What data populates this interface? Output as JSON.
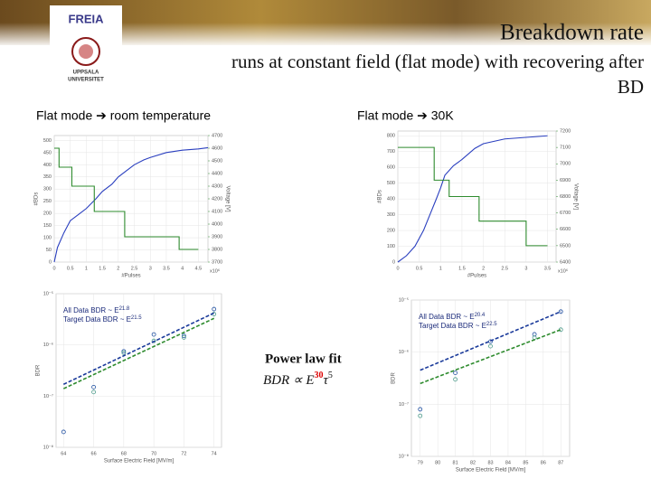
{
  "header": {
    "title": "Breakdown rate",
    "subtitle": [
      "runs at constant field (flat mode) with recovering after",
      "BD"
    ],
    "logo1": "FREIA",
    "logo2": [
      "UPPSALA",
      "UNIVERSITET"
    ],
    "left_heading": "Flat mode ➔ room temperature",
    "right_heading": "Flat mode ➔ 30K"
  },
  "formula": {
    "title": "Power law fit",
    "lhs": "BDR ∝ E",
    "exp1": "30",
    "tau": "τ",
    "exp2": "5"
  },
  "chart_data": [
    {
      "type": "line",
      "xlabel": "#Pulses",
      "ylabel": "#BDs",
      "y2label": "Voltage [V]",
      "x_multiplier": "x10⁶",
      "xlim": [
        0,
        4.8
      ],
      "xticks": [
        0,
        0.5,
        1,
        1.5,
        2,
        2.5,
        3,
        3.5,
        4,
        4.5
      ],
      "ylim": [
        0,
        520
      ],
      "yticks": [
        0,
        50,
        100,
        150,
        200,
        250,
        300,
        350,
        400,
        450,
        500
      ],
      "y2lim": [
        3700,
        4700
      ],
      "y2ticks": [
        3700,
        3800,
        3900,
        4000,
        4100,
        4200,
        4300,
        4400,
        4500,
        4600,
        4700
      ],
      "grid": true,
      "series": [
        {
          "color": "#2a3fbf",
          "style": "line",
          "x": [
            0,
            0.1,
            0.3,
            0.5,
            0.8,
            1,
            1.3,
            1.5,
            1.8,
            2,
            2.3,
            2.5,
            2.8,
            3,
            3.5,
            4,
            4.5,
            4.8
          ],
          "values": [
            0,
            60,
            120,
            170,
            200,
            220,
            260,
            290,
            320,
            350,
            380,
            400,
            420,
            430,
            450,
            460,
            465,
            470
          ]
        },
        {
          "color": "#2e8b2e",
          "style": "line",
          "axis": "y2",
          "x": [
            0,
            0.15,
            0.15,
            0.55,
            0.55,
            1.25,
            1.25,
            2.2,
            2.2,
            3.9,
            3.9,
            4.5
          ],
          "values": [
            4600,
            4600,
            4450,
            4450,
            4300,
            4300,
            4100,
            4100,
            3900,
            3900,
            3800,
            3800
          ]
        }
      ]
    },
    {
      "type": "line",
      "xlabel": "#Pulses",
      "ylabel": "#BDs",
      "y2label": "Voltage [V]",
      "x_multiplier": "x10⁶",
      "xlim": [
        0,
        3.7
      ],
      "xticks": [
        0,
        0.5,
        1,
        1.5,
        2,
        2.5,
        3,
        3.5
      ],
      "ylim": [
        0,
        830
      ],
      "yticks": [
        0,
        100,
        200,
        300,
        400,
        500,
        600,
        700,
        800
      ],
      "y2lim": [
        6400,
        7200
      ],
      "y2ticks": [
        6400,
        6500,
        6600,
        6700,
        6800,
        6900,
        7000,
        7100,
        7200
      ],
      "grid": true,
      "series": [
        {
          "color": "#2a3fbf",
          "style": "line",
          "x": [
            0,
            0.2,
            0.4,
            0.6,
            0.75,
            0.9,
            1,
            1.1,
            1.3,
            1.5,
            1.8,
            2,
            2.5,
            3,
            3.5
          ],
          "values": [
            0,
            40,
            100,
            200,
            300,
            400,
            470,
            550,
            610,
            650,
            720,
            750,
            780,
            790,
            800
          ]
        },
        {
          "color": "#2e8b2e",
          "style": "line",
          "axis": "y2",
          "x": [
            0,
            0.85,
            0.85,
            1.2,
            1.2,
            1.9,
            1.9,
            3,
            3,
            3.5
          ],
          "values": [
            7100,
            7100,
            6900,
            6900,
            6800,
            6800,
            6650,
            6650,
            6500,
            6500
          ]
        }
      ]
    },
    {
      "type": "scatter",
      "xlabel": "Surface Electric Field [MV/m]",
      "ylabel": "BDR",
      "ylog": true,
      "xlim": [
        63.5,
        74.5
      ],
      "xticks": [
        64,
        66,
        68,
        70,
        72,
        74
      ],
      "ylim": [
        1e-08,
        1e-05
      ],
      "yticks": [
        {
          "value": 1e-08,
          "label": "10⁻⁸"
        },
        {
          "value": 1e-07,
          "label": "10⁻⁷"
        },
        {
          "value": 1e-06,
          "label": "10⁻⁶"
        },
        {
          "value": 1e-05,
          "label": "10⁻⁵"
        }
      ],
      "grid": true,
      "annotations": [
        {
          "text": "All Data BDR ~ E",
          "exponent": "21.8",
          "color": "#1a2a7a"
        },
        {
          "text": "Target Data BDR ~ E",
          "exponent": "21.5",
          "color": "#1a2a7a"
        }
      ],
      "series": [
        {
          "color": "#1f4fa0",
          "style": "markers",
          "x": [
            64,
            66,
            68,
            70,
            72,
            74
          ],
          "values": [
            2e-08,
            1.5e-07,
            7.5e-07,
            1.6e-06,
            1.5e-06,
            5e-06
          ]
        },
        {
          "color": "#4a9a8a",
          "style": "markers",
          "x": [
            66,
            68,
            70,
            72,
            74
          ],
          "values": [
            1.2e-07,
            7e-07,
            1.2e-06,
            1.4e-06,
            4e-06
          ]
        },
        {
          "color": "#1a3a9a",
          "style": "dashed",
          "x": [
            64,
            74
          ],
          "values": [
            1.7e-07,
            4.2e-06
          ]
        },
        {
          "color": "#2e8b2e",
          "style": "dashed",
          "x": [
            64,
            74
          ],
          "values": [
            1.4e-07,
            3.3e-06
          ]
        }
      ]
    },
    {
      "type": "scatter",
      "xlabel": "Surface Electric Field [MV/m]",
      "ylabel": "BDR",
      "ylog": true,
      "xlim": [
        78.5,
        87.5
      ],
      "xticks": [
        79,
        80,
        81,
        82,
        83,
        84,
        85,
        86,
        87
      ],
      "ylim": [
        1e-08,
        1e-05
      ],
      "yticks": [
        {
          "value": 1e-08,
          "label": "10⁻⁸"
        },
        {
          "value": 1e-07,
          "label": "10⁻⁷"
        },
        {
          "value": 1e-06,
          "label": "10⁻⁶"
        },
        {
          "value": 1e-05,
          "label": "10⁻⁵"
        }
      ],
      "grid": true,
      "annotations": [
        {
          "text": "All Data BDR ~ E",
          "exponent": "20.4",
          "color": "#1a2a7a"
        },
        {
          "text": "Target Data BDR ~ E",
          "exponent": "22.5",
          "color": "#1a2a7a"
        }
      ],
      "series": [
        {
          "color": "#1f4fa0",
          "style": "markers",
          "x": [
            79,
            81,
            83,
            85.5,
            87
          ],
          "values": [
            8e-08,
            4e-07,
            1.6e-06,
            2.2e-06,
            6e-06
          ]
        },
        {
          "color": "#4a9a8a",
          "style": "markers",
          "x": [
            79,
            81,
            83,
            85.5,
            87
          ],
          "values": [
            6e-08,
            3e-07,
            1.3e-06,
            1.9e-06,
            2.7e-06
          ]
        },
        {
          "color": "#1a3a9a",
          "style": "dashed",
          "x": [
            79,
            87
          ],
          "values": [
            4.5e-07,
            6e-06
          ]
        },
        {
          "color": "#2e8b2e",
          "style": "dashed",
          "x": [
            79,
            87
          ],
          "values": [
            2.5e-07,
            2.7e-06
          ]
        }
      ]
    }
  ]
}
